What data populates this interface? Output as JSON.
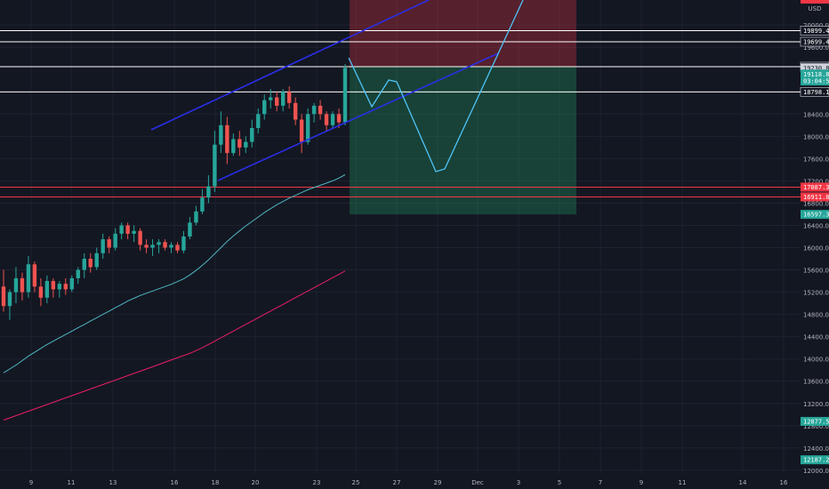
{
  "chart_data": {
    "type": "candlestick",
    "currency": "USD",
    "x_tick_labels": [
      "9",
      "11",
      "13",
      "16",
      "18",
      "20",
      "23",
      "25",
      "27",
      "29",
      "Dec",
      "3",
      "5",
      "7",
      "9",
      "11",
      "14",
      "16"
    ],
    "y_tick_labels": [
      "20000.00",
      "19600.00",
      "18800.00",
      "18400.00",
      "18000.00",
      "17600.00",
      "17200.00",
      "16800.00",
      "16400.00",
      "16000.00",
      "15600.00",
      "15200.00",
      "14800.00",
      "14400.00",
      "14000.00",
      "13600.00",
      "13200.00",
      "12800.00",
      "12400.00",
      "12000.00"
    ],
    "y_tick_values": [
      20000,
      19600,
      18800,
      18400,
      18000,
      17600,
      17200,
      16800,
      16400,
      16000,
      15600,
      15200,
      14800,
      14400,
      14000,
      13600,
      13200,
      12800,
      12400,
      12000
    ],
    "ylim": [
      11950,
      20450
    ],
    "horizontal_levels": [
      {
        "label": "19899.42",
        "value": 19899.42,
        "color": "#ffffff"
      },
      {
        "label": "19699.40",
        "value": 19699.4,
        "color": "#ffffff"
      },
      {
        "label": "19252.23",
        "value": 19252.23,
        "color": "#ffffff"
      },
      {
        "label": "18798.16",
        "value": 18798.16,
        "color": "#ffffff"
      },
      {
        "label": "17087.31",
        "value": 17087.31,
        "color": "#f23645"
      },
      {
        "label": "16911.89",
        "value": 16911.89,
        "color": "#f23645"
      }
    ],
    "price_badges": [
      {
        "label": "19230.87",
        "value": 19230.87,
        "bg": "#d1d4dc",
        "fg": "#131722"
      },
      {
        "label": "19118.87",
        "value": 19118.87,
        "bg": "#26a69a",
        "fg": "#ffffff"
      },
      {
        "label": "03:04:58",
        "value": 18995,
        "bg": "#26a69a",
        "fg": "#ffffff"
      },
      {
        "label": "16597.36",
        "value": 16597.36,
        "bg": "#26a69a",
        "fg": "#ffffff"
      },
      {
        "label": "12877.54",
        "value": 12877.54,
        "bg": "#26a69a",
        "fg": "#ffffff"
      },
      {
        "label": "12187.26",
        "value": 12187.26,
        "bg": "#26a69a",
        "fg": "#ffffff"
      }
    ],
    "candles_ohlc": [
      [
        15300,
        15600,
        14850,
        14950
      ],
      [
        14950,
        15250,
        14700,
        15200
      ],
      [
        15200,
        15650,
        15000,
        15450
      ],
      [
        15450,
        15550,
        15050,
        15200
      ],
      [
        15200,
        15850,
        15100,
        15700
      ],
      [
        15700,
        15750,
        15200,
        15300
      ],
      [
        15300,
        15450,
        14950,
        15100
      ],
      [
        15100,
        15500,
        15000,
        15400
      ],
      [
        15400,
        15450,
        15100,
        15250
      ],
      [
        15250,
        15400,
        15100,
        15350
      ],
      [
        15350,
        15450,
        15150,
        15250
      ],
      [
        15250,
        15500,
        15200,
        15450
      ],
      [
        15450,
        15650,
        15350,
        15600
      ],
      [
        15600,
        15900,
        15450,
        15800
      ],
      [
        15800,
        15900,
        15550,
        15650
      ],
      [
        15650,
        16000,
        15600,
        15900
      ],
      [
        15900,
        16250,
        15800,
        16150
      ],
      [
        16150,
        16200,
        15900,
        16000
      ],
      [
        16000,
        16350,
        15950,
        16250
      ],
      [
        16250,
        16450,
        16150,
        16400
      ],
      [
        16400,
        16450,
        16150,
        16250
      ],
      [
        16250,
        16400,
        16100,
        16300
      ],
      [
        16300,
        16350,
        15950,
        16050
      ],
      [
        16050,
        16150,
        15900,
        16000
      ],
      [
        16000,
        16150,
        15850,
        16050
      ],
      [
        16050,
        16150,
        15900,
        16100
      ],
      [
        16100,
        16150,
        15950,
        16000
      ],
      [
        16000,
        16100,
        15900,
        16050
      ],
      [
        16050,
        16100,
        15900,
        15950
      ],
      [
        15950,
        16300,
        15900,
        16200
      ],
      [
        16200,
        16550,
        16150,
        16450
      ],
      [
        16450,
        16750,
        16400,
        16650
      ],
      [
        16650,
        17050,
        16600,
        16900
      ],
      [
        16900,
        17300,
        16800,
        17100
      ],
      [
        17100,
        18100,
        17000,
        17850
      ],
      [
        17850,
        18450,
        17700,
        18200
      ],
      [
        18200,
        18350,
        17500,
        17700
      ],
      [
        17700,
        18050,
        17650,
        17950
      ],
      [
        17950,
        18100,
        17650,
        17800
      ],
      [
        17800,
        18000,
        17700,
        17900
      ],
      [
        17900,
        18300,
        17800,
        18150
      ],
      [
        18150,
        18500,
        18050,
        18400
      ],
      [
        18400,
        18750,
        18300,
        18650
      ],
      [
        18650,
        18850,
        18500,
        18700
      ],
      [
        18700,
        18800,
        18450,
        18550
      ],
      [
        18550,
        18850,
        18450,
        18800
      ],
      [
        18800,
        18900,
        18500,
        18600
      ],
      [
        18600,
        18700,
        18200,
        18300
      ],
      [
        18300,
        18400,
        17700,
        17900
      ],
      [
        17900,
        18500,
        17850,
        18400
      ],
      [
        18400,
        18600,
        18250,
        18550
      ],
      [
        18550,
        18650,
        18300,
        18400
      ],
      [
        18400,
        18450,
        18100,
        18200
      ],
      [
        18200,
        18450,
        18150,
        18400
      ],
      [
        18400,
        18500,
        18150,
        18250
      ],
      [
        18250,
        19300,
        18200,
        19230.87
      ]
    ],
    "series": [
      {
        "name": "",
        "color": "#4fb6c2",
        "values": [
          13750,
          13820,
          13890,
          13970,
          14050,
          14120,
          14190,
          14260,
          14320,
          14380,
          14440,
          14500,
          14560,
          14620,
          14680,
          14740,
          14800,
          14860,
          14920,
          14980,
          15040,
          15090,
          15140,
          15180,
          15220,
          15260,
          15300,
          15340,
          15390,
          15440,
          15510,
          15590,
          15680,
          15780,
          15890,
          16000,
          16110,
          16210,
          16300,
          16390,
          16470,
          16550,
          16630,
          16700,
          16770,
          16830,
          16890,
          16940,
          16990,
          17040,
          17080,
          17120,
          17160,
          17200,
          17250,
          17310
        ]
      },
      {
        "name": "",
        "color": "#e91e63",
        "values": [
          12900,
          12940,
          12980,
          13020,
          13060,
          13100,
          13140,
          13180,
          13220,
          13260,
          13300,
          13340,
          13380,
          13420,
          13460,
          13500,
          13540,
          13580,
          13620,
          13660,
          13700,
          13740,
          13780,
          13820,
          13860,
          13900,
          13940,
          13980,
          14020,
          14060,
          14100,
          14150,
          14200,
          14260,
          14320,
          14380,
          14440,
          14500,
          14560,
          14620,
          14680,
          14740,
          14800,
          14860,
          14920,
          14980,
          15040,
          15100,
          15160,
          15220,
          15280,
          15340,
          15400,
          15460,
          15520,
          15580
        ]
      }
    ],
    "channel_lines": [
      {
        "color": "#2a2ee6",
        "points": [
          [
            170,
            146
          ],
          [
            482,
            0
          ]
        ]
      },
      {
        "color": "#2a2ee6",
        "points": [
          [
            245,
            203
          ],
          [
            560,
            60
          ]
        ]
      }
    ],
    "projection_path": {
      "color": "#4fc3f7",
      "points": [
        [
          392,
          65
        ],
        [
          418,
          120
        ],
        [
          437,
          90
        ],
        [
          446,
          92
        ],
        [
          490,
          193
        ],
        [
          500,
          190
        ],
        [
          588,
          0
        ]
      ]
    },
    "zones": {
      "stop": {
        "top": 20450,
        "bottom": 19252.23,
        "color": "rgba(242,54,69,0.30)"
      },
      "target": {
        "top": 19252.23,
        "bottom": 16597.36,
        "color": "rgba(38,166,105,0.30)"
      }
    }
  }
}
